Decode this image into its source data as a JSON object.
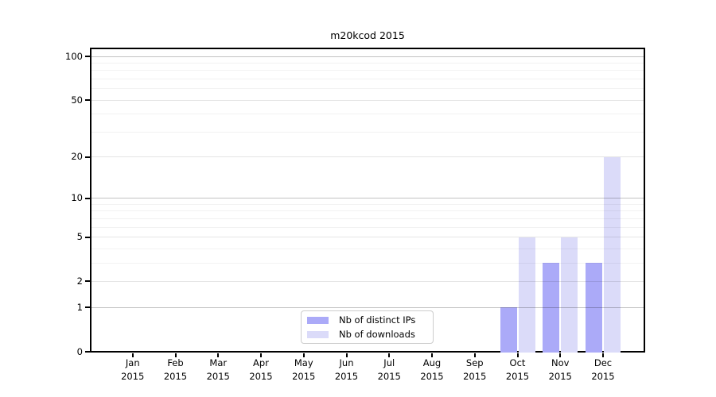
{
  "title": "m20kcod 2015",
  "legend": {
    "items": [
      {
        "label": "Nb of distinct IPs",
        "color": "#abaaf8"
      },
      {
        "label": "Nb of downloads",
        "color": "#dbdbf9"
      }
    ]
  },
  "chart_data": {
    "type": "bar",
    "title": "m20kcod 2015",
    "categories": [
      "Jan",
      "Feb",
      "Mar",
      "Apr",
      "May",
      "Jun",
      "Jul",
      "Aug",
      "Sep",
      "Oct",
      "Nov",
      "Dec"
    ],
    "category_year": "2015",
    "series": [
      {
        "name": "Nb of distinct IPs",
        "color": "#abaaf8",
        "values": [
          0,
          0,
          0,
          0,
          0,
          0,
          0,
          0,
          0,
          1,
          3,
          3
        ]
      },
      {
        "name": "Nb of downloads",
        "color": "#dbdbf9",
        "values": [
          0,
          0,
          0,
          0,
          0,
          0,
          0,
          0,
          0,
          5,
          5,
          20
        ]
      }
    ],
    "xlabel": "",
    "ylabel": "",
    "y_scale": "log10(1+v) (log-like axis with 0 baseline)",
    "ylim": [
      0,
      115
    ],
    "yticks": [
      0,
      1,
      2,
      5,
      10,
      20,
      50,
      100
    ],
    "ytick_labels": [
      "0",
      "1",
      "2",
      "5",
      "10",
      "20",
      "50",
      "100"
    ],
    "grid": "on (horizontal only, drawn over bars)",
    "legend_position": "lower center"
  }
}
